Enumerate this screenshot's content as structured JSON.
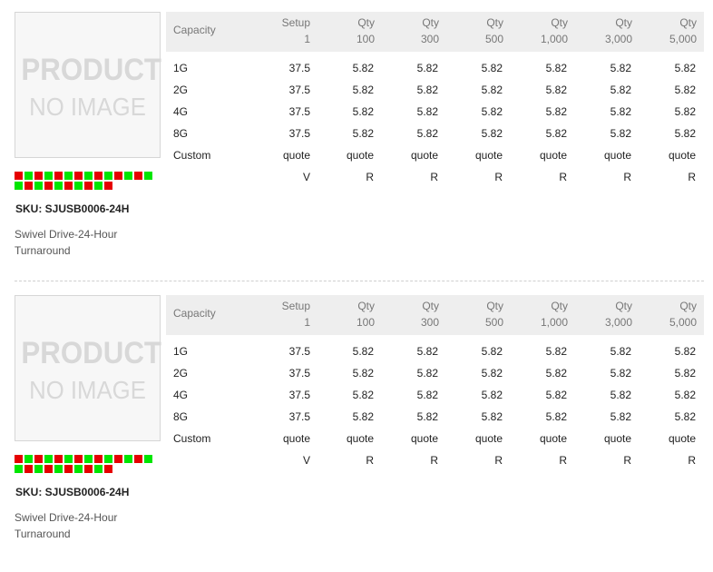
{
  "products": [
    {
      "image_text_1": "PRODUCT",
      "image_text_2": "NO IMAGE",
      "sku": "SKU: SJUSB0006-24H",
      "description": "Swivel Drive-24-Hour Turnaround",
      "swatch_colors": {
        "row1": [
          "#e60000",
          "#00e600",
          "#e60000",
          "#00e600",
          "#e60000",
          "#00e600",
          "#e60000",
          "#00e600",
          "#e60000",
          "#00e600",
          "#e60000",
          "#00e600",
          "#e60000",
          "#00e600"
        ],
        "row2": [
          "#00e600",
          "#e60000",
          "#00e600",
          "#e60000",
          "#00e600",
          "#e60000",
          "#00e600",
          "#e60000",
          "#00e600",
          "#e60000"
        ]
      },
      "table": {
        "capacity_header": "Capacity",
        "columns": [
          {
            "line1": "Setup",
            "line2": "1"
          },
          {
            "line1": "Qty",
            "line2": "100"
          },
          {
            "line1": "Qty",
            "line2": "300"
          },
          {
            "line1": "Qty",
            "line2": "500"
          },
          {
            "line1": "Qty",
            "line2": "1,000"
          },
          {
            "line1": "Qty",
            "line2": "3,000"
          },
          {
            "line1": "Qty",
            "line2": "5,000"
          }
        ],
        "rows": [
          {
            "label": "1G",
            "values": [
              "37.5",
              "5.82",
              "5.82",
              "5.82",
              "5.82",
              "5.82",
              "5.82"
            ]
          },
          {
            "label": "2G",
            "values": [
              "37.5",
              "5.82",
              "5.82",
              "5.82",
              "5.82",
              "5.82",
              "5.82"
            ]
          },
          {
            "label": "4G",
            "values": [
              "37.5",
              "5.82",
              "5.82",
              "5.82",
              "5.82",
              "5.82",
              "5.82"
            ]
          },
          {
            "label": "8G",
            "values": [
              "37.5",
              "5.82",
              "5.82",
              "5.82",
              "5.82",
              "5.82",
              "5.82"
            ]
          },
          {
            "label": "Custom",
            "values": [
              "quote",
              "quote",
              "quote",
              "quote",
              "quote",
              "quote",
              "quote"
            ]
          },
          {
            "label": "",
            "values": [
              "V",
              "R",
              "R",
              "R",
              "R",
              "R",
              "R"
            ]
          }
        ]
      }
    },
    {
      "image_text_1": "PRODUCT",
      "image_text_2": "NO IMAGE",
      "sku": "SKU: SJUSB0006-24H",
      "description": "Swivel Drive-24-Hour Turnaround",
      "swatch_colors": {
        "row1": [
          "#e60000",
          "#00e600",
          "#e60000",
          "#00e600",
          "#e60000",
          "#00e600",
          "#e60000",
          "#00e600",
          "#e60000",
          "#00e600",
          "#e60000",
          "#00e600",
          "#e60000",
          "#00e600"
        ],
        "row2": [
          "#00e600",
          "#e60000",
          "#00e600",
          "#e60000",
          "#00e600",
          "#e60000",
          "#00e600",
          "#e60000",
          "#00e600",
          "#e60000"
        ]
      },
      "table": {
        "capacity_header": "Capacity",
        "columns": [
          {
            "line1": "Setup",
            "line2": "1"
          },
          {
            "line1": "Qty",
            "line2": "100"
          },
          {
            "line1": "Qty",
            "line2": "300"
          },
          {
            "line1": "Qty",
            "line2": "500"
          },
          {
            "line1": "Qty",
            "line2": "1,000"
          },
          {
            "line1": "Qty",
            "line2": "3,000"
          },
          {
            "line1": "Qty",
            "line2": "5,000"
          }
        ],
        "rows": [
          {
            "label": "1G",
            "values": [
              "37.5",
              "5.82",
              "5.82",
              "5.82",
              "5.82",
              "5.82",
              "5.82"
            ]
          },
          {
            "label": "2G",
            "values": [
              "37.5",
              "5.82",
              "5.82",
              "5.82",
              "5.82",
              "5.82",
              "5.82"
            ]
          },
          {
            "label": "4G",
            "values": [
              "37.5",
              "5.82",
              "5.82",
              "5.82",
              "5.82",
              "5.82",
              "5.82"
            ]
          },
          {
            "label": "8G",
            "values": [
              "37.5",
              "5.82",
              "5.82",
              "5.82",
              "5.82",
              "5.82",
              "5.82"
            ]
          },
          {
            "label": "Custom",
            "values": [
              "quote",
              "quote",
              "quote",
              "quote",
              "quote",
              "quote",
              "quote"
            ]
          },
          {
            "label": "",
            "values": [
              "V",
              "R",
              "R",
              "R",
              "R",
              "R",
              "R"
            ]
          }
        ]
      }
    }
  ]
}
